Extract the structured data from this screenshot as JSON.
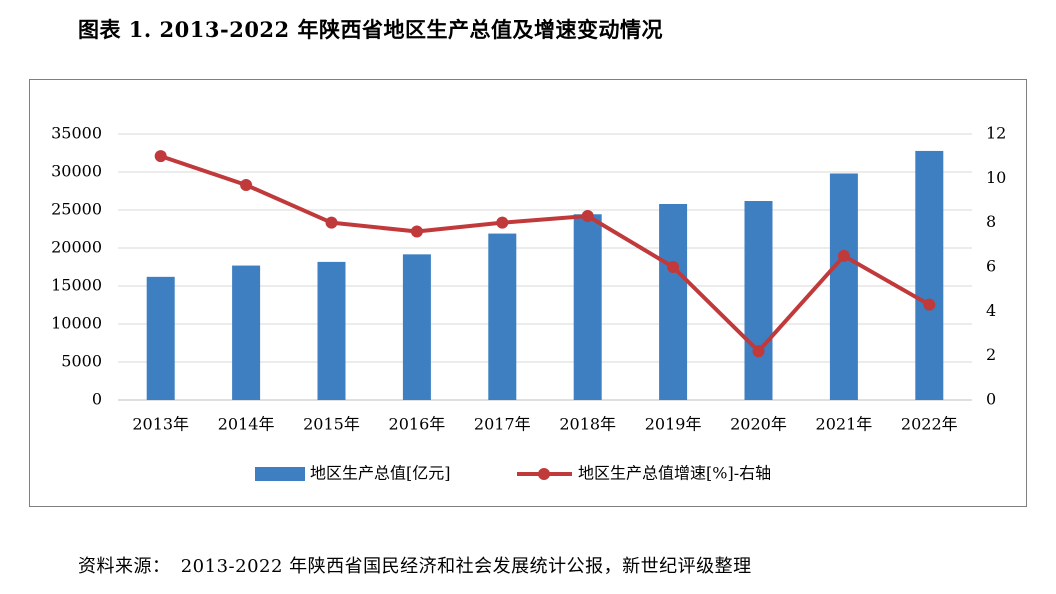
{
  "figure_title": "图表 1. 2013-2022 年陕西省地区生产总值及增速变动情况",
  "source": {
    "label": "资料来源：",
    "text": "2013-2022 年陕西省国民经济和社会发展统计公报，新世纪评级整理"
  },
  "colors": {
    "bar": "#3e7fc1",
    "line": "#c0393b",
    "grid": "#d9d9d9",
    "axis": "#bfbfbf"
  },
  "chart_data": {
    "type": "bar",
    "categories": [
      "2013年",
      "2014年",
      "2015年",
      "2016年",
      "2017年",
      "2018年",
      "2019年",
      "2020年",
      "2021年",
      "2022年"
    ],
    "series": [
      {
        "name": "地区生产总值[亿元]",
        "type": "bar",
        "axis": "left",
        "values": [
          16205,
          17690,
          18172,
          19165,
          21899,
          24438,
          25793,
          26182,
          29801,
          32773
        ]
      },
      {
        "name": "地区生产总值增速[%]-右轴",
        "type": "line",
        "axis": "right",
        "values": [
          11.0,
          9.7,
          8.0,
          7.6,
          8.0,
          8.3,
          6.0,
          2.2,
          6.5,
          4.3
        ]
      }
    ],
    "y_left": {
      "min": 0,
      "max": 35000,
      "ticks": [
        "0",
        "5000",
        "10000",
        "15000",
        "20000",
        "25000",
        "30000",
        "35000"
      ]
    },
    "y_right": {
      "min": 0,
      "max": 12,
      "ticks": [
        "0",
        "2",
        "4",
        "6",
        "8",
        "10",
        "12"
      ]
    },
    "grid": true,
    "legend": "bottom"
  }
}
